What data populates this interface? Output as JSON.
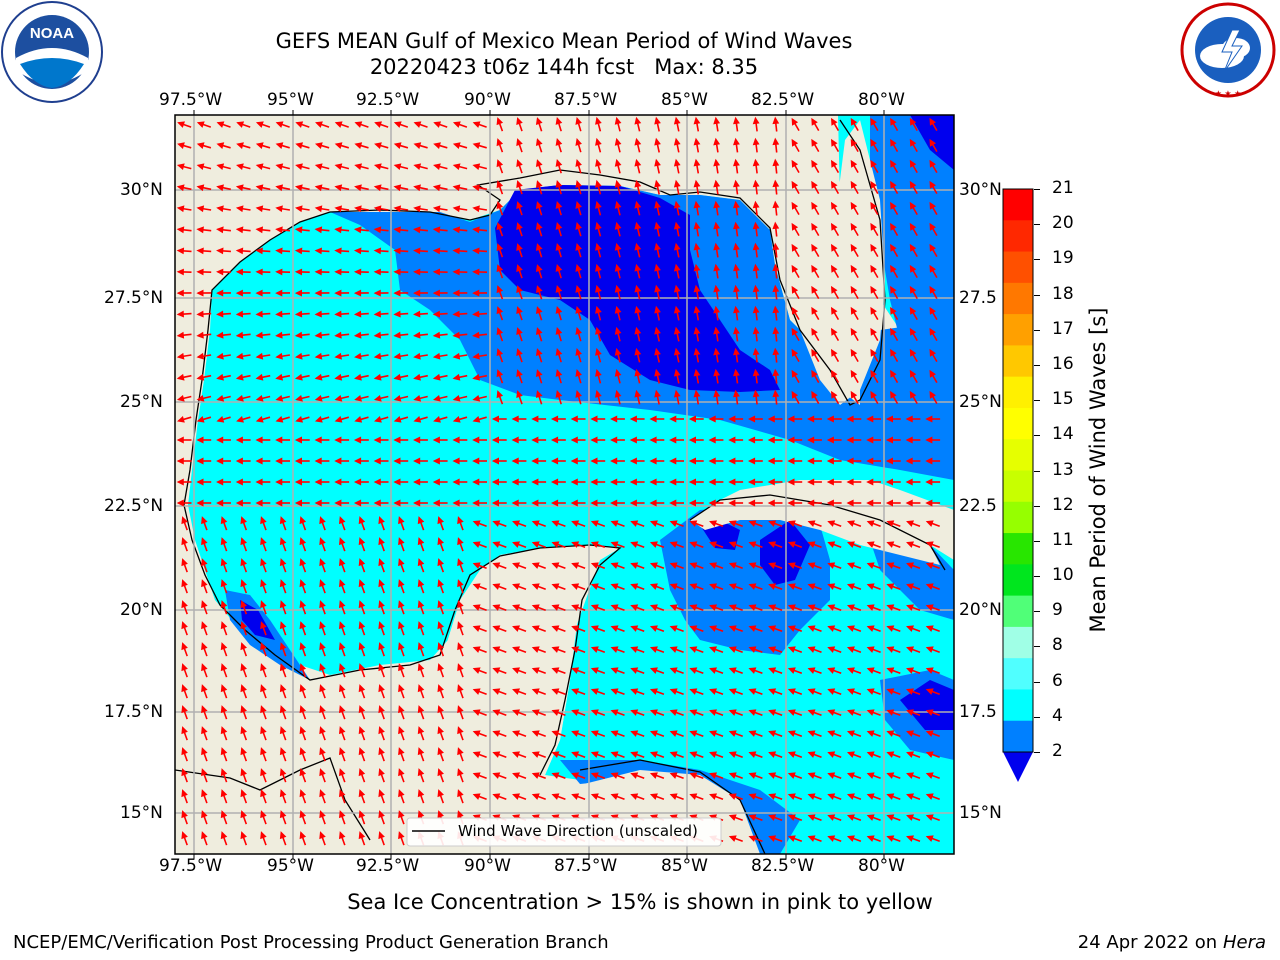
{
  "header": {
    "title_line1": "GEFS MEAN Gulf of Mexico Mean Period of Wind Waves",
    "title_line2": "20220423 t06z 144h fcst   Max: 8.35"
  },
  "logos": {
    "noaa_text": "NOAA",
    "noaa_ring": "NATIONAL OCEANIC AND ATMOSPHERIC ADMINISTRATION · U.S. DEPARTMENT OF COMMERCE",
    "nws_ring": "NATIONAL WEATHER SERVICE"
  },
  "map": {
    "lon_labels": [
      "97.5°W",
      "95°W",
      "92.5°W",
      "90°W",
      "87.5°W",
      "85°W",
      "82.5°W",
      "80°W"
    ],
    "lat_labels": [
      "30°N",
      "27.5°N",
      "25°N",
      "22.5°N",
      "20°N",
      "17.5°N",
      "15°N"
    ],
    "lat_labels_right": [
      "30°N",
      "27.5",
      "25°N",
      "22.5",
      "20°N",
      "17.5",
      "15°N"
    ],
    "legend": "Wind Wave Direction (unscaled)",
    "colors": {
      "land": "#efedde",
      "period_0_2": "#0000ee",
      "period_2_4": "#0080ff",
      "period_4_6": "#00ffff",
      "arrow": "#ff0000"
    }
  },
  "colorbar": {
    "label": "Mean Period of Wind Waves [s]",
    "ticks": [
      "21",
      "20",
      "19",
      "18",
      "17",
      "16",
      "15",
      "14",
      "13",
      "12",
      "11",
      "10",
      "9",
      "8",
      "6",
      "4",
      "2"
    ],
    "colors": [
      "#ff0000",
      "#ff2800",
      "#ff5000",
      "#ff7800",
      "#ffa000",
      "#ffc800",
      "#fff000",
      "#ffff00",
      "#e6ff00",
      "#c8ff00",
      "#96ff00",
      "#28e600",
      "#00e61e",
      "#50ff78",
      "#a0ffe6",
      "#50ffff",
      "#00ffff",
      "#0080ff"
    ],
    "extend_color": "#0000ee"
  },
  "notes": {
    "sea_ice": "Sea Ice Concentration > 15% is shown in pink to yellow"
  },
  "footer": {
    "left": "NCEP/EMC/Verification Post Processing Product Generation Branch",
    "right_prefix": "24 Apr 2022 on ",
    "right_machine": "Hera"
  }
}
